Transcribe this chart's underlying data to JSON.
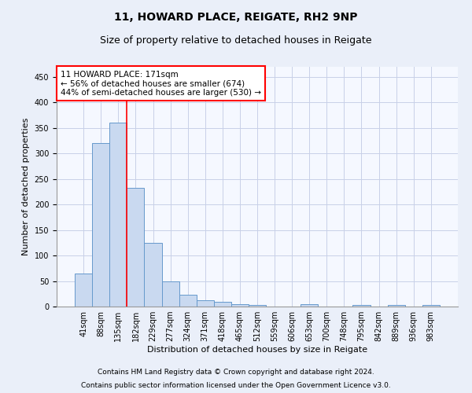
{
  "title_line1": "11, HOWARD PLACE, REIGATE, RH2 9NP",
  "title_line2": "Size of property relative to detached houses in Reigate",
  "xlabel": "Distribution of detached houses by size in Reigate",
  "ylabel": "Number of detached properties",
  "bar_labels": [
    "41sqm",
    "88sqm",
    "135sqm",
    "182sqm",
    "229sqm",
    "277sqm",
    "324sqm",
    "371sqm",
    "418sqm",
    "465sqm",
    "512sqm",
    "559sqm",
    "606sqm",
    "653sqm",
    "700sqm",
    "748sqm",
    "795sqm",
    "842sqm",
    "889sqm",
    "936sqm",
    "983sqm"
  ],
  "bar_heights": [
    65,
    320,
    360,
    233,
    125,
    50,
    23,
    13,
    9,
    5,
    3,
    0,
    0,
    4,
    0,
    0,
    3,
    0,
    3,
    0,
    3
  ],
  "bar_color": "#c9d9f0",
  "bar_edge_color": "#6699cc",
  "vline_x": 2.5,
  "annotation_title": "11 HOWARD PLACE: 171sqm",
  "annotation_line2": "← 56% of detached houses are smaller (674)",
  "annotation_line3": "44% of semi-detached houses are larger (530) →",
  "annotation_box_color": "white",
  "annotation_box_edge_color": "red",
  "vline_color": "red",
  "ylim": [
    0,
    470
  ],
  "yticks": [
    0,
    50,
    100,
    150,
    200,
    250,
    300,
    350,
    400,
    450
  ],
  "footer_line1": "Contains HM Land Registry data © Crown copyright and database right 2024.",
  "footer_line2": "Contains public sector information licensed under the Open Government Licence v3.0.",
  "title_fontsize": 10,
  "subtitle_fontsize": 9,
  "axis_label_fontsize": 8,
  "tick_fontsize": 7,
  "footer_fontsize": 6.5,
  "annotation_fontsize": 7.5,
  "background_color": "#eaeff9",
  "plot_background_color": "#f5f8ff",
  "grid_color": "#c8d0e8"
}
